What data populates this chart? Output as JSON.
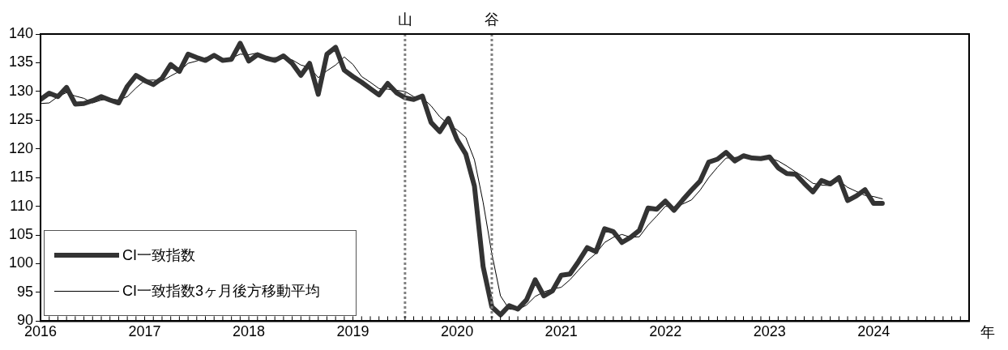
{
  "chart_data": {
    "type": "line",
    "x": [
      "2016-01",
      "2016-02",
      "2016-03",
      "2016-04",
      "2016-05",
      "2016-06",
      "2016-07",
      "2016-08",
      "2016-09",
      "2016-10",
      "2016-11",
      "2016-12",
      "2017-01",
      "2017-02",
      "2017-03",
      "2017-04",
      "2017-05",
      "2017-06",
      "2017-07",
      "2017-08",
      "2017-09",
      "2017-10",
      "2017-11",
      "2017-12",
      "2018-01",
      "2018-02",
      "2018-03",
      "2018-04",
      "2018-05",
      "2018-06",
      "2018-07",
      "2018-08",
      "2018-09",
      "2018-10",
      "2018-11",
      "2018-12",
      "2019-01",
      "2019-02",
      "2019-03",
      "2019-04",
      "2019-05",
      "2019-06",
      "2019-07",
      "2019-08",
      "2019-09",
      "2019-10",
      "2019-11",
      "2019-12",
      "2020-01",
      "2020-02",
      "2020-03",
      "2020-04",
      "2020-05",
      "2020-06",
      "2020-07",
      "2020-08",
      "2020-09",
      "2020-10",
      "2020-11",
      "2020-12",
      "2021-01",
      "2021-02",
      "2021-03",
      "2021-04",
      "2021-05",
      "2021-06",
      "2021-07",
      "2021-08",
      "2021-09",
      "2021-10",
      "2021-11",
      "2021-12",
      "2022-01",
      "2022-02",
      "2022-03",
      "2022-04",
      "2022-05",
      "2022-06",
      "2022-07",
      "2022-08",
      "2022-09",
      "2022-10",
      "2022-11",
      "2022-12",
      "2023-01",
      "2023-02",
      "2023-03",
      "2023-04",
      "2023-05",
      "2023-06",
      "2023-07",
      "2023-08",
      "2023-09",
      "2023-10",
      "2023-11",
      "2023-12",
      "2024-01",
      "2024-02"
    ],
    "series": [
      {
        "name": "CI一致指数",
        "color": "#333333",
        "values": [
          128.6,
          129.7,
          129.1,
          130.7,
          127.8,
          127.9,
          128.4,
          129.1,
          128.5,
          128.0,
          130.9,
          132.8,
          131.9,
          131.2,
          132.3,
          134.7,
          133.5,
          136.5,
          135.9,
          135.4,
          136.3,
          135.4,
          135.6,
          138.4,
          135.3,
          136.4,
          135.8,
          135.4,
          136.2,
          134.9,
          132.8,
          134.9,
          129.5,
          136.5,
          137.7,
          133.7,
          132.6,
          131.6,
          130.5,
          129.4,
          131.4,
          129.8,
          128.9,
          128.6,
          129.2,
          124.6,
          123.0,
          125.3,
          121.6,
          119.1,
          113.5,
          99.5,
          92.5,
          91.1,
          92.7,
          92.1,
          93.7,
          97.2,
          94.4,
          95.3,
          98.0,
          98.2,
          100.4,
          102.8,
          102.1,
          106.1,
          105.6,
          103.7,
          104.6,
          105.8,
          109.7,
          109.5,
          110.9,
          109.3,
          111.1,
          112.8,
          114.4,
          117.7,
          118.2,
          119.4,
          117.9,
          118.8,
          118.4,
          118.3,
          118.6,
          116.7,
          115.7,
          115.6,
          114.0,
          112.5,
          114.5,
          113.9,
          115.0,
          111.0,
          111.8,
          112.9,
          110.5,
          110.5
        ]
      },
      {
        "name": "CI一致指数3ヶ月後方移動平均",
        "color": "#000000",
        "values": [
          127.9,
          128.0,
          129.1,
          129.8,
          129.2,
          128.8,
          128.0,
          128.5,
          128.7,
          128.5,
          129.1,
          130.6,
          131.9,
          132.0,
          131.8,
          132.7,
          133.5,
          134.9,
          135.3,
          135.9,
          135.9,
          135.7,
          135.8,
          136.5,
          136.4,
          136.7,
          135.8,
          135.9,
          135.8,
          135.5,
          134.6,
          134.2,
          132.4,
          133.6,
          134.6,
          136.0,
          134.7,
          132.6,
          131.6,
          130.5,
          130.4,
          130.2,
          130.0,
          129.1,
          128.9,
          127.5,
          125.6,
          124.3,
          123.3,
          122.0,
          118.1,
          110.7,
          101.8,
          94.4,
          92.1,
          92.0,
          92.8,
          94.3,
          95.1,
          95.6,
          95.9,
          97.2,
          98.9,
          100.5,
          101.8,
          103.7,
          104.6,
          105.1,
          104.6,
          104.7,
          106.7,
          108.3,
          110.0,
          109.9,
          110.4,
          111.1,
          112.8,
          115.0,
          116.8,
          118.4,
          118.5,
          118.7,
          118.4,
          118.5,
          118.4,
          117.9,
          117.0,
          116.0,
          115.1,
          114.0,
          113.7,
          113.6,
          114.5,
          113.3,
          112.6,
          111.9,
          111.7,
          111.3
        ]
      }
    ],
    "xlabel": "年",
    "xlim": [
      "2016-01",
      "2024-12"
    ],
    "xticks": [
      "2016",
      "2017",
      "2018",
      "2019",
      "2020",
      "2021",
      "2022",
      "2023",
      "2024"
    ],
    "ylim": [
      90,
      140
    ],
    "yticks": [
      90,
      95,
      100,
      105,
      110,
      115,
      120,
      125,
      130,
      135,
      140
    ],
    "ref_lines": [
      {
        "axis": "x",
        "value": "2019-07",
        "label": "山",
        "color": "#808080",
        "line_style": "dotted"
      },
      {
        "axis": "x",
        "value": "2020-05",
        "label": "谷",
        "color": "#808080",
        "line_style": "dotted"
      }
    ],
    "legend": "bottom left",
    "marker": "none",
    "line_style": "solid"
  }
}
